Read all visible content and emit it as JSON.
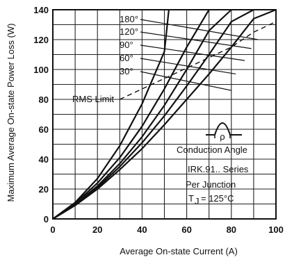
{
  "chart_data": {
    "type": "line",
    "xlabel": "Average On-state Current (A)",
    "ylabel": "Maximum Average On-state Power Loss (W)",
    "xlim": [
      0,
      100
    ],
    "ylim": [
      0,
      140
    ],
    "xticks": [
      "0",
      "20",
      "40",
      "60",
      "80",
      "100"
    ],
    "yticks": [
      "0",
      "20",
      "40",
      "60",
      "80",
      "100",
      "120",
      "140"
    ],
    "grid": true,
    "series": [
      {
        "name": "180°",
        "x": [
          0,
          10,
          20,
          30,
          40,
          50,
          60,
          70,
          80,
          90,
          100
        ],
        "y": [
          0,
          9,
          20,
          33,
          47,
          63,
          80,
          97,
          115,
          134,
          140
        ]
      },
      {
        "name": "120°",
        "x": [
          0,
          10,
          20,
          30,
          40,
          50,
          60,
          70,
          80,
          90
        ],
        "y": [
          0,
          9.5,
          21,
          35,
          51,
          69,
          89,
          110,
          132,
          140
        ]
      },
      {
        "name": "90°",
        "x": [
          0,
          10,
          20,
          30,
          40,
          50,
          60,
          70,
          80
        ],
        "y": [
          0,
          10,
          22,
          37,
          55,
          76,
          100,
          126,
          140
        ]
      },
      {
        "name": "60°",
        "x": [
          0,
          10,
          20,
          30,
          40,
          50,
          60,
          70
        ],
        "y": [
          0,
          10.5,
          24,
          41,
          62,
          87,
          115,
          140
        ]
      },
      {
        "name": "30°",
        "x": [
          0,
          10,
          20,
          30,
          40,
          50,
          52
        ],
        "y": [
          0,
          11,
          27,
          49,
          77,
          112,
          140
        ]
      }
    ],
    "rms_limit": {
      "label": "RMS Limit",
      "x": [
        30,
        80,
        85,
        90,
        100
      ],
      "y": [
        80,
        115,
        120,
        125,
        132
      ]
    },
    "inset": {
      "label": "Conduction Angle",
      "symbol": "ρ"
    },
    "annotations": [
      "IRK.91.. Series",
      "Per Junction",
      "T",
      "J",
      "= 125°C"
    ]
  }
}
